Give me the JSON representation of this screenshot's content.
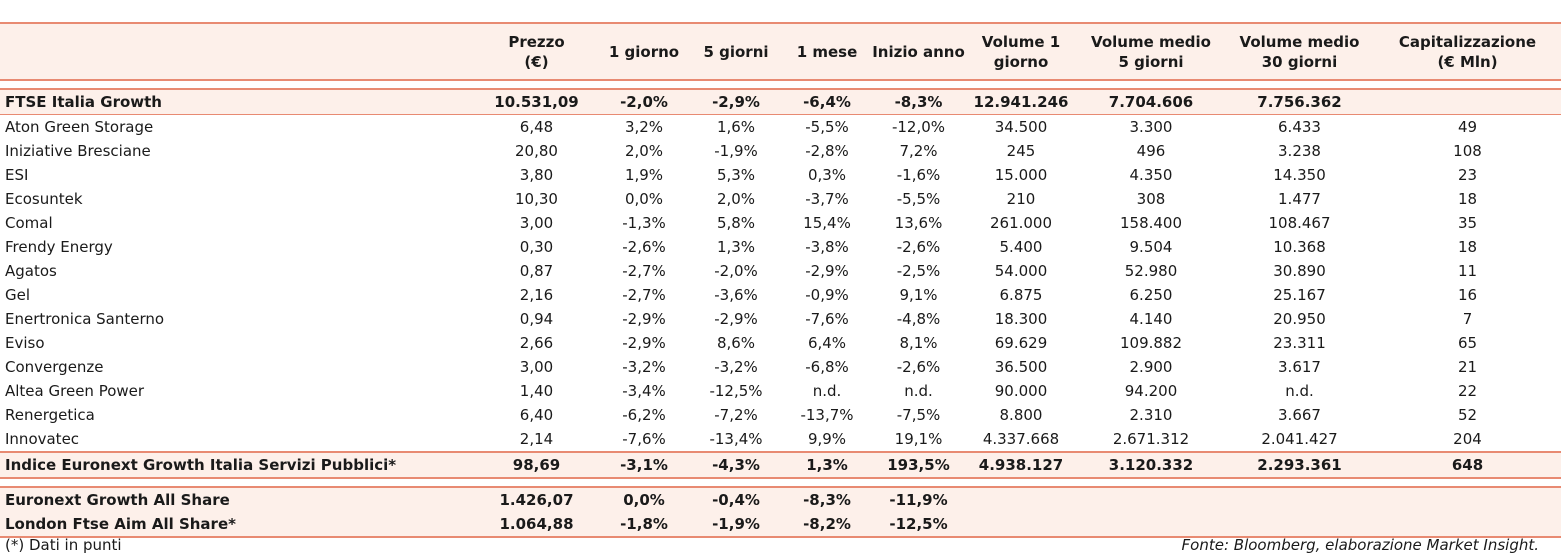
{
  "headers": [
    "",
    "Prezzo\n(€)",
    "1 giorno",
    "5 giorni",
    "1 mese",
    "Inizio anno",
    "Volume 1\ngiorno",
    "Volume medio\n5 giorni",
    "Volume medio\n30 giorni",
    "Capitalizzazione\n(€ Mln)"
  ],
  "index_top": {
    "name": "FTSE Italia Growth",
    "values": [
      "10.531,09",
      "-2,0%",
      "-2,9%",
      "-6,4%",
      "-8,3%",
      "12.941.246",
      "7.704.606",
      "7.756.362",
      ""
    ]
  },
  "rows": [
    {
      "name": "Aton Green Storage",
      "values": [
        "6,48",
        "3,2%",
        "1,6%",
        "-5,5%",
        "-12,0%",
        "34.500",
        "3.300",
        "6.433",
        "49"
      ]
    },
    {
      "name": "Iniziative Bresciane",
      "values": [
        "20,80",
        "2,0%",
        "-1,9%",
        "-2,8%",
        "7,2%",
        "245",
        "496",
        "3.238",
        "108"
      ]
    },
    {
      "name": "ESI",
      "values": [
        "3,80",
        "1,9%",
        "5,3%",
        "0,3%",
        "-1,6%",
        "15.000",
        "4.350",
        "14.350",
        "23"
      ]
    },
    {
      "name": "Ecosuntek",
      "values": [
        "10,30",
        "0,0%",
        "2,0%",
        "-3,7%",
        "-5,5%",
        "210",
        "308",
        "1.477",
        "18"
      ]
    },
    {
      "name": "Comal",
      "values": [
        "3,00",
        "-1,3%",
        "5,8%",
        "15,4%",
        "13,6%",
        "261.000",
        "158.400",
        "108.467",
        "35"
      ]
    },
    {
      "name": "Frendy Energy",
      "values": [
        "0,30",
        "-2,6%",
        "1,3%",
        "-3,8%",
        "-2,6%",
        "5.400",
        "9.504",
        "10.368",
        "18"
      ]
    },
    {
      "name": "Agatos",
      "values": [
        "0,87",
        "-2,7%",
        "-2,0%",
        "-2,9%",
        "-2,5%",
        "54.000",
        "52.980",
        "30.890",
        "11"
      ]
    },
    {
      "name": "Gel",
      "values": [
        "2,16",
        "-2,7%",
        "-3,6%",
        "-0,9%",
        "9,1%",
        "6.875",
        "6.250",
        "25.167",
        "16"
      ]
    },
    {
      "name": "Enertronica Santerno",
      "values": [
        "0,94",
        "-2,9%",
        "-2,9%",
        "-7,6%",
        "-4,8%",
        "18.300",
        "4.140",
        "20.950",
        "7"
      ]
    },
    {
      "name": "Eviso",
      "values": [
        "2,66",
        "-2,9%",
        "8,6%",
        "6,4%",
        "8,1%",
        "69.629",
        "109.882",
        "23.311",
        "65"
      ]
    },
    {
      "name": "Convergenze",
      "values": [
        "3,00",
        "-3,2%",
        "-3,2%",
        "-6,8%",
        "-2,6%",
        "36.500",
        "2.900",
        "3.617",
        "21"
      ]
    },
    {
      "name": "Altea Green Power",
      "values": [
        "1,40",
        "-3,4%",
        "-12,5%",
        "n.d.",
        "n.d.",
        "90.000",
        "94.200",
        "n.d.",
        "22"
      ]
    },
    {
      "name": "Renergetica",
      "values": [
        "6,40",
        "-6,2%",
        "-7,2%",
        "-13,7%",
        "-7,5%",
        "8.800",
        "2.310",
        "3.667",
        "52"
      ]
    },
    {
      "name": "Innovatec",
      "values": [
        "2,14",
        "-7,6%",
        "-13,4%",
        "9,9%",
        "19,1%",
        "4.337.668",
        "2.671.312",
        "2.041.427",
        "204"
      ]
    }
  ],
  "index_sector": {
    "name": "Indice Euronext Growth Italia Servizi Pubblici*",
    "values": [
      "98,69",
      "-3,1%",
      "-4,3%",
      "1,3%",
      "193,5%",
      "4.938.127",
      "3.120.332",
      "2.293.361",
      "648"
    ]
  },
  "bottom_indices": [
    {
      "name": "Euronext Growth All Share",
      "values": [
        "1.426,07",
        "0,0%",
        "-0,4%",
        "-8,3%",
        "-11,9%",
        "",
        "",
        "",
        ""
      ]
    },
    {
      "name": "London Ftse Aim All Share*",
      "values": [
        "1.064,88",
        "-1,8%",
        "-1,9%",
        "-8,2%",
        "-12,5%",
        "",
        "",
        "",
        ""
      ]
    }
  ],
  "footnote": "(*) Dati in punti",
  "source": "Fonte: Bloomberg, elaborazione Market Insight.",
  "colors": {
    "accent_border": "#e88a72",
    "header_fill": "#fdf0ea",
    "text": "#1a1a1a"
  }
}
